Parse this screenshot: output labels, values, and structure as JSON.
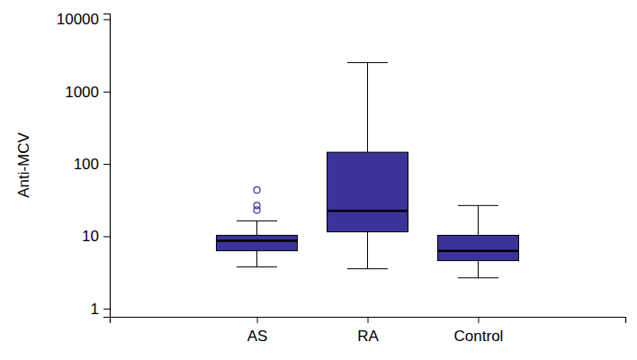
{
  "chart_data": {
    "type": "box",
    "y_label": "Anti-MCV",
    "categories": [
      "AS",
      "RA",
      "Control"
    ],
    "boxes": [
      {
        "whislo": 3.76,
        "q1": 6.3,
        "med": 8.66,
        "q3": 10.3,
        "whishi": 16.3,
        "fliers": [
          23,
          26.6,
          43.5
        ]
      },
      {
        "whislo": 3.55,
        "q1": 11.5,
        "med": 22.4,
        "q3": 145,
        "whishi": 2512,
        "fliers": []
      },
      {
        "whislo": 2.66,
        "q1": 4.6,
        "med": 6.3,
        "q3": 10.3,
        "whishi": 26.6,
        "fliers": []
      }
    ],
    "color": "#3b3399",
    "log": "y",
    "ylim": [
      0.77,
      12000
    ],
    "yticks": [
      1,
      10,
      100,
      1000,
      10000
    ],
    "grid": false
  }
}
